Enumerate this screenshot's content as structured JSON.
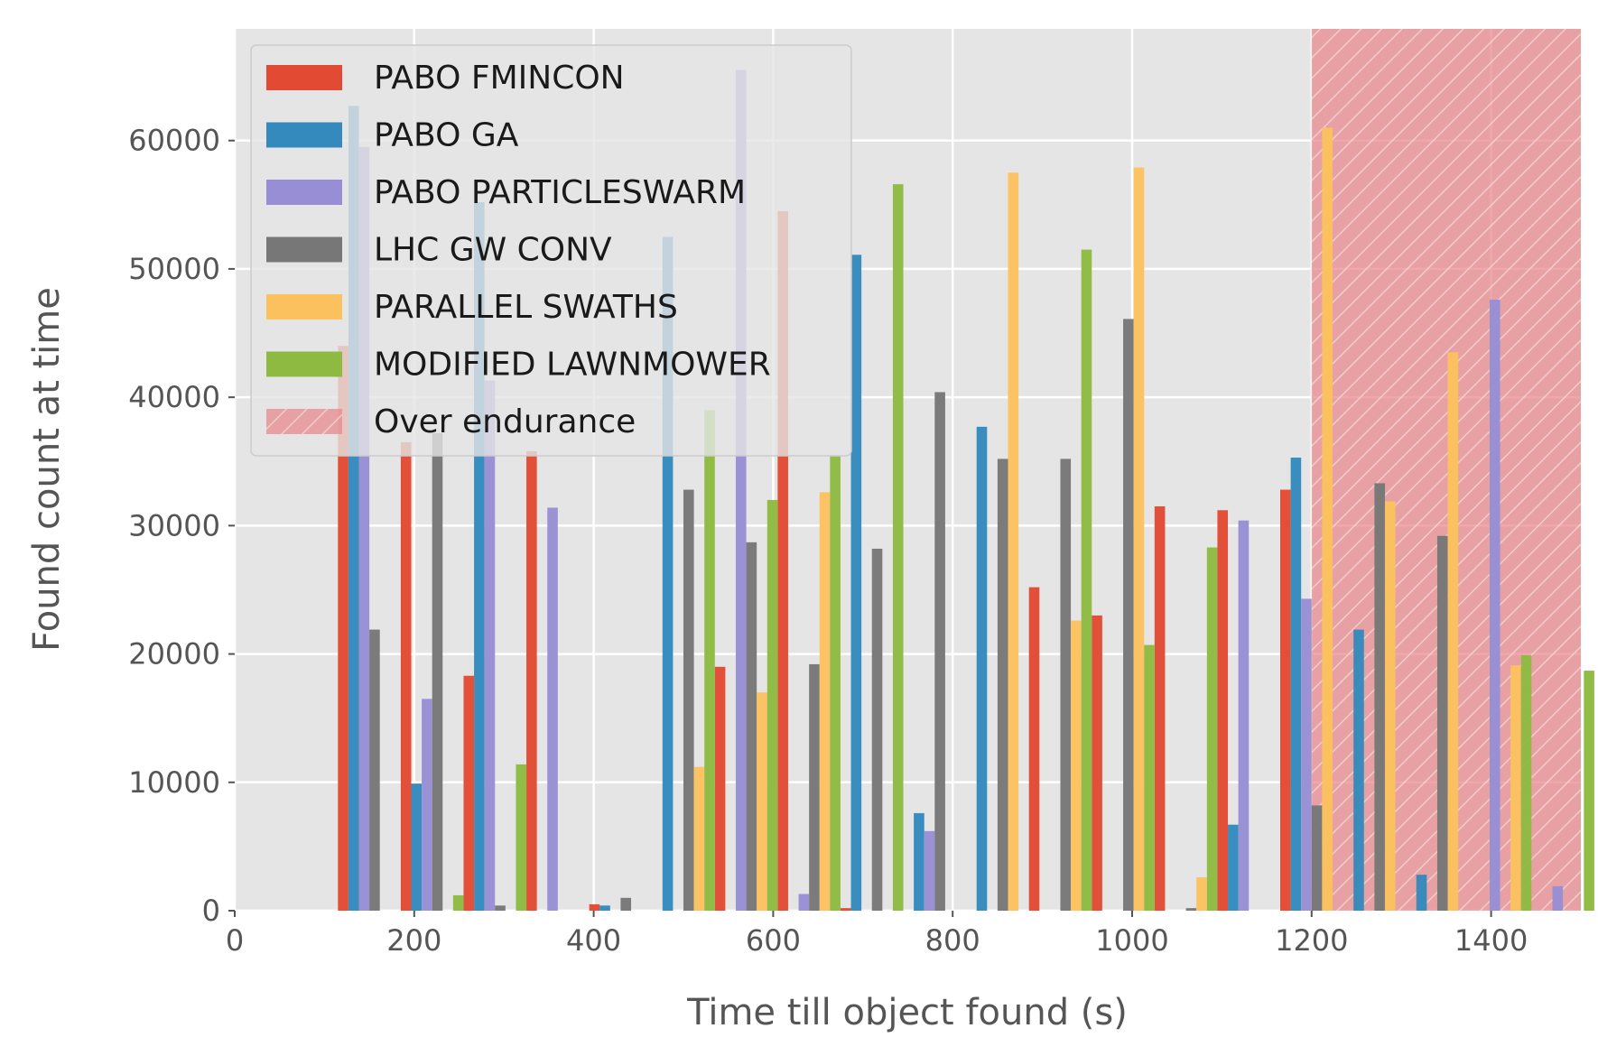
{
  "chart_data": {
    "type": "bar",
    "xlabel": "Time till object found (s)",
    "ylabel": "Found count at time",
    "xlim": [
      0,
      1500
    ],
    "ylim": [
      0,
      68700
    ],
    "x_ticks": [
      "0",
      "200",
      "400",
      "600",
      "800",
      "1000",
      "1200",
      "1400"
    ],
    "y_ticks": [
      "0",
      "10000",
      "20000",
      "30000",
      "40000",
      "50000",
      "60000"
    ],
    "grid": true,
    "legend_position": "top-left",
    "bin_centers": [
      150,
      220,
      290,
      360,
      430,
      500,
      570,
      640,
      710,
      780,
      850,
      920,
      990,
      1060,
      1130,
      1200,
      1270,
      1340,
      1410,
      1480
    ],
    "series": [
      {
        "name": "PABO FMINCON",
        "color": "#E24A33",
        "values": [
          44000,
          36500,
          18300,
          35800,
          500,
          0,
          19000,
          54500,
          200,
          0,
          0,
          25200,
          23000,
          31500,
          31200,
          32800,
          0,
          0,
          0,
          0
        ]
      },
      {
        "name": "PABO GA",
        "color": "#348ABD",
        "values": [
          62700,
          9900,
          55200,
          0,
          400,
          52500,
          0,
          0,
          51100,
          7600,
          37700,
          0,
          0,
          0,
          6700,
          35300,
          21900,
          2800,
          0,
          0
        ]
      },
      {
        "name": "PABO PARTICLESWARM",
        "color": "#988ED5",
        "values": [
          59500,
          16500,
          41300,
          31400,
          0,
          0,
          65500,
          1300,
          0,
          6200,
          0,
          0,
          0,
          0,
          30400,
          24300,
          0,
          0,
          47600,
          1900
        ]
      },
      {
        "name": "LHC GW CONV",
        "color": "#777777",
        "values": [
          21900,
          37200,
          400,
          0,
          1000,
          32800,
          28700,
          19200,
          28200,
          40400,
          35200,
          35200,
          46100,
          200,
          0,
          8200,
          33300,
          29200,
          0,
          0
        ]
      },
      {
        "name": "PARALLEL SWATHS",
        "color": "#FBC15E",
        "values": [
          0,
          0,
          0,
          0,
          0,
          11200,
          17000,
          32600,
          0,
          0,
          57500,
          22600,
          57900,
          2600,
          0,
          61000,
          31900,
          43500,
          19100,
          0
        ]
      },
      {
        "name": "MODIFIED LAWNMOWER",
        "color": "#8EBA42",
        "values": [
          0,
          1200,
          11400,
          0,
          0,
          39000,
          32000,
          35400,
          56600,
          0,
          0,
          51500,
          20700,
          28300,
          0,
          0,
          0,
          0,
          19900,
          18700
        ]
      }
    ],
    "shaded_region": {
      "name": "Over endurance",
      "x_start": 1200,
      "x_end": 1500,
      "color": "#E8878A"
    }
  }
}
